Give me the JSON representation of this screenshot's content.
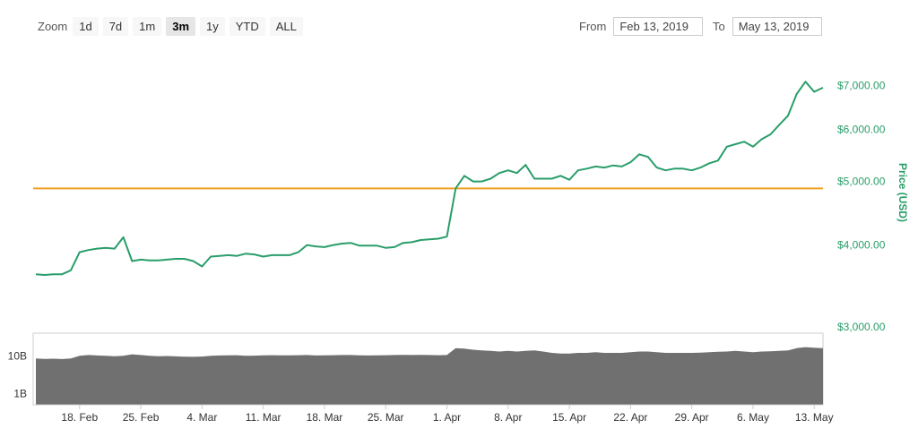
{
  "toolbar": {
    "zoom_label": "Zoom",
    "zoom_options": [
      "1d",
      "7d",
      "1m",
      "3m",
      "1y",
      "YTD",
      "ALL"
    ],
    "active_zoom": "3m",
    "from_label": "From",
    "from_value": "Feb 13, 2019",
    "to_label": "To",
    "to_value": "May 13, 2019"
  },
  "chart_data": {
    "type": "line",
    "x_label_format": "date",
    "x_range": [
      "2019-02-13",
      "2019-05-14"
    ],
    "x_ticks": [
      {
        "date": "2019-02-18",
        "label": "18. Feb"
      },
      {
        "date": "2019-02-25",
        "label": "25. Feb"
      },
      {
        "date": "2019-03-04",
        "label": "4. Mar"
      },
      {
        "date": "2019-03-11",
        "label": "11. Mar"
      },
      {
        "date": "2019-03-18",
        "label": "18. Mar"
      },
      {
        "date": "2019-03-25",
        "label": "25. Mar"
      },
      {
        "date": "2019-04-01",
        "label": "1. Apr"
      },
      {
        "date": "2019-04-08",
        "label": "8. Apr"
      },
      {
        "date": "2019-04-15",
        "label": "15. Apr"
      },
      {
        "date": "2019-04-22",
        "label": "22. Apr"
      },
      {
        "date": "2019-04-29",
        "label": "29. Apr"
      },
      {
        "date": "2019-05-06",
        "label": "6. May"
      },
      {
        "date": "2019-05-13",
        "label": "13. May"
      }
    ],
    "price": {
      "ylabel": "Price (USD)",
      "scale": "log",
      "ylim": [
        3000,
        7400
      ],
      "y_ticks": [
        {
          "value": 3000,
          "label": "$3,000.00"
        },
        {
          "value": 4000,
          "label": "$4,000.00"
        },
        {
          "value": 5000,
          "label": "$5,000.00"
        },
        {
          "value": 6000,
          "label": "$6,000.00"
        },
        {
          "value": 7000,
          "label": "$7,000.00"
        }
      ],
      "color": "#2a9d6a",
      "reference_line": {
        "value": 4880,
        "color": "#f0a020"
      },
      "points": [
        [
          "2019-02-13",
          3610
        ],
        [
          "2019-02-14",
          3600
        ],
        [
          "2019-02-15",
          3610
        ],
        [
          "2019-02-16",
          3610
        ],
        [
          "2019-02-17",
          3660
        ],
        [
          "2019-02-18",
          3900
        ],
        [
          "2019-02-19",
          3930
        ],
        [
          "2019-02-20",
          3950
        ],
        [
          "2019-02-21",
          3960
        ],
        [
          "2019-02-22",
          3950
        ],
        [
          "2019-02-23",
          4110
        ],
        [
          "2019-02-24",
          3780
        ],
        [
          "2019-02-25",
          3800
        ],
        [
          "2019-02-26",
          3790
        ],
        [
          "2019-02-27",
          3790
        ],
        [
          "2019-02-28",
          3800
        ],
        [
          "2019-03-01",
          3810
        ],
        [
          "2019-03-02",
          3810
        ],
        [
          "2019-03-03",
          3780
        ],
        [
          "2019-03-04",
          3710
        ],
        [
          "2019-03-05",
          3840
        ],
        [
          "2019-03-06",
          3850
        ],
        [
          "2019-03-07",
          3860
        ],
        [
          "2019-03-08",
          3850
        ],
        [
          "2019-03-09",
          3880
        ],
        [
          "2019-03-10",
          3870
        ],
        [
          "2019-03-11",
          3840
        ],
        [
          "2019-03-12",
          3860
        ],
        [
          "2019-03-13",
          3860
        ],
        [
          "2019-03-14",
          3860
        ],
        [
          "2019-03-15",
          3900
        ],
        [
          "2019-03-16",
          4000
        ],
        [
          "2019-03-17",
          3980
        ],
        [
          "2019-03-18",
          3970
        ],
        [
          "2019-03-19",
          4000
        ],
        [
          "2019-03-20",
          4020
        ],
        [
          "2019-03-21",
          4030
        ],
        [
          "2019-03-22",
          3990
        ],
        [
          "2019-03-23",
          3990
        ],
        [
          "2019-03-24",
          3990
        ],
        [
          "2019-03-25",
          3960
        ],
        [
          "2019-03-26",
          3970
        ],
        [
          "2019-03-27",
          4030
        ],
        [
          "2019-03-28",
          4040
        ],
        [
          "2019-03-29",
          4070
        ],
        [
          "2019-03-30",
          4080
        ],
        [
          "2019-03-31",
          4090
        ],
        [
          "2019-04-01",
          4120
        ],
        [
          "2019-04-02",
          4880
        ],
        [
          "2019-04-03",
          5100
        ],
        [
          "2019-04-04",
          5000
        ],
        [
          "2019-04-05",
          5000
        ],
        [
          "2019-04-06",
          5050
        ],
        [
          "2019-04-07",
          5150
        ],
        [
          "2019-04-08",
          5200
        ],
        [
          "2019-04-09",
          5150
        ],
        [
          "2019-04-10",
          5300
        ],
        [
          "2019-04-11",
          5050
        ],
        [
          "2019-04-12",
          5050
        ],
        [
          "2019-04-13",
          5050
        ],
        [
          "2019-04-14",
          5100
        ],
        [
          "2019-04-15",
          5030
        ],
        [
          "2019-04-16",
          5200
        ],
        [
          "2019-04-17",
          5230
        ],
        [
          "2019-04-18",
          5270
        ],
        [
          "2019-04-19",
          5250
        ],
        [
          "2019-04-20",
          5290
        ],
        [
          "2019-04-21",
          5270
        ],
        [
          "2019-04-22",
          5350
        ],
        [
          "2019-04-23",
          5500
        ],
        [
          "2019-04-24",
          5450
        ],
        [
          "2019-04-25",
          5250
        ],
        [
          "2019-04-26",
          5200
        ],
        [
          "2019-04-27",
          5230
        ],
        [
          "2019-04-28",
          5230
        ],
        [
          "2019-04-29",
          5200
        ],
        [
          "2019-04-30",
          5250
        ],
        [
          "2019-05-01",
          5330
        ],
        [
          "2019-05-02",
          5380
        ],
        [
          "2019-05-03",
          5650
        ],
        [
          "2019-05-04",
          5700
        ],
        [
          "2019-05-05",
          5750
        ],
        [
          "2019-05-06",
          5650
        ],
        [
          "2019-05-07",
          5800
        ],
        [
          "2019-05-08",
          5900
        ],
        [
          "2019-05-09",
          6100
        ],
        [
          "2019-05-10",
          6300
        ],
        [
          "2019-05-11",
          6800
        ],
        [
          "2019-05-12",
          7100
        ],
        [
          "2019-05-13",
          6850
        ],
        [
          "2019-05-14",
          6950
        ]
      ]
    },
    "volume": {
      "scale": "log",
      "y_ticks": [
        {
          "value": 1000000000.0,
          "label": "1B"
        },
        {
          "value": 10000000000.0,
          "label": "10B"
        }
      ],
      "color": "#707070",
      "points": [
        [
          "2019-02-13",
          8500000000.0
        ],
        [
          "2019-02-14",
          8300000000.0
        ],
        [
          "2019-02-15",
          8400000000.0
        ],
        [
          "2019-02-16",
          8200000000.0
        ],
        [
          "2019-02-17",
          8500000000.0
        ],
        [
          "2019-02-18",
          10000000000.0
        ],
        [
          "2019-02-19",
          10500000000.0
        ],
        [
          "2019-02-20",
          10200000000.0
        ],
        [
          "2019-02-21",
          10000000000.0
        ],
        [
          "2019-02-22",
          9800000000.0
        ],
        [
          "2019-02-23",
          10000000000.0
        ],
        [
          "2019-02-24",
          11000000000.0
        ],
        [
          "2019-02-25",
          10500000000.0
        ],
        [
          "2019-02-26",
          10000000000.0
        ],
        [
          "2019-02-27",
          9800000000.0
        ],
        [
          "2019-02-28",
          9900000000.0
        ],
        [
          "2019-03-01",
          9700000000.0
        ],
        [
          "2019-03-02",
          9500000000.0
        ],
        [
          "2019-03-03",
          9400000000.0
        ],
        [
          "2019-03-04",
          9600000000.0
        ],
        [
          "2019-03-05",
          10000000000.0
        ],
        [
          "2019-03-06",
          10200000000.0
        ],
        [
          "2019-03-07",
          10300000000.0
        ],
        [
          "2019-03-08",
          10400000000.0
        ],
        [
          "2019-03-09",
          10000000000.0
        ],
        [
          "2019-03-10",
          10100000000.0
        ],
        [
          "2019-03-11",
          10300000000.0
        ],
        [
          "2019-03-12",
          10400000000.0
        ],
        [
          "2019-03-13",
          10300000000.0
        ],
        [
          "2019-03-14",
          10300000000.0
        ],
        [
          "2019-03-15",
          10400000000.0
        ],
        [
          "2019-03-16",
          10500000000.0
        ],
        [
          "2019-03-17",
          10200000000.0
        ],
        [
          "2019-03-18",
          10300000000.0
        ],
        [
          "2019-03-19",
          10400000000.0
        ],
        [
          "2019-03-20",
          10500000000.0
        ],
        [
          "2019-03-21",
          10500000000.0
        ],
        [
          "2019-03-22",
          10300000000.0
        ],
        [
          "2019-03-23",
          10200000000.0
        ],
        [
          "2019-03-24",
          10300000000.0
        ],
        [
          "2019-03-25",
          10400000000.0
        ],
        [
          "2019-03-26",
          10500000000.0
        ],
        [
          "2019-03-27",
          10600000000.0
        ],
        [
          "2019-03-28",
          10500000000.0
        ],
        [
          "2019-03-29",
          10600000000.0
        ],
        [
          "2019-03-30",
          10500000000.0
        ],
        [
          "2019-03-31",
          10400000000.0
        ],
        [
          "2019-04-01",
          10500000000.0
        ],
        [
          "2019-04-02",
          16000000000.0
        ],
        [
          "2019-04-03",
          15500000000.0
        ],
        [
          "2019-04-04",
          14500000000.0
        ],
        [
          "2019-04-05",
          14000000000.0
        ],
        [
          "2019-04-06",
          13500000000.0
        ],
        [
          "2019-04-07",
          13000000000.0
        ],
        [
          "2019-04-08",
          13500000000.0
        ],
        [
          "2019-04-09",
          13000000000.0
        ],
        [
          "2019-04-10",
          13500000000.0
        ],
        [
          "2019-04-11",
          14000000000.0
        ],
        [
          "2019-04-12",
          13000000000.0
        ],
        [
          "2019-04-13",
          12000000000.0
        ],
        [
          "2019-04-14",
          11500000000.0
        ],
        [
          "2019-04-15",
          11500000000.0
        ],
        [
          "2019-04-16",
          12000000000.0
        ],
        [
          "2019-04-17",
          12000000000.0
        ],
        [
          "2019-04-18",
          12500000000.0
        ],
        [
          "2019-04-19",
          12000000000.0
        ],
        [
          "2019-04-20",
          12000000000.0
        ],
        [
          "2019-04-21",
          12000000000.0
        ],
        [
          "2019-04-22",
          12500000000.0
        ],
        [
          "2019-04-23",
          13000000000.0
        ],
        [
          "2019-04-24",
          13000000000.0
        ],
        [
          "2019-04-25",
          12500000000.0
        ],
        [
          "2019-04-26",
          12000000000.0
        ],
        [
          "2019-04-27",
          12000000000.0
        ],
        [
          "2019-04-28",
          12000000000.0
        ],
        [
          "2019-04-29",
          12000000000.0
        ],
        [
          "2019-04-30",
          12200000000.0
        ],
        [
          "2019-05-01",
          12500000000.0
        ],
        [
          "2019-05-02",
          12800000000.0
        ],
        [
          "2019-05-03",
          13000000000.0
        ],
        [
          "2019-05-04",
          13500000000.0
        ],
        [
          "2019-05-05",
          13000000000.0
        ],
        [
          "2019-05-06",
          12500000000.0
        ],
        [
          "2019-05-07",
          13000000000.0
        ],
        [
          "2019-05-08",
          13200000000.0
        ],
        [
          "2019-05-09",
          13500000000.0
        ],
        [
          "2019-05-10",
          14000000000.0
        ],
        [
          "2019-05-11",
          16000000000.0
        ],
        [
          "2019-05-12",
          17000000000.0
        ],
        [
          "2019-05-13",
          16500000000.0
        ],
        [
          "2019-05-14",
          16000000000.0
        ]
      ]
    }
  }
}
